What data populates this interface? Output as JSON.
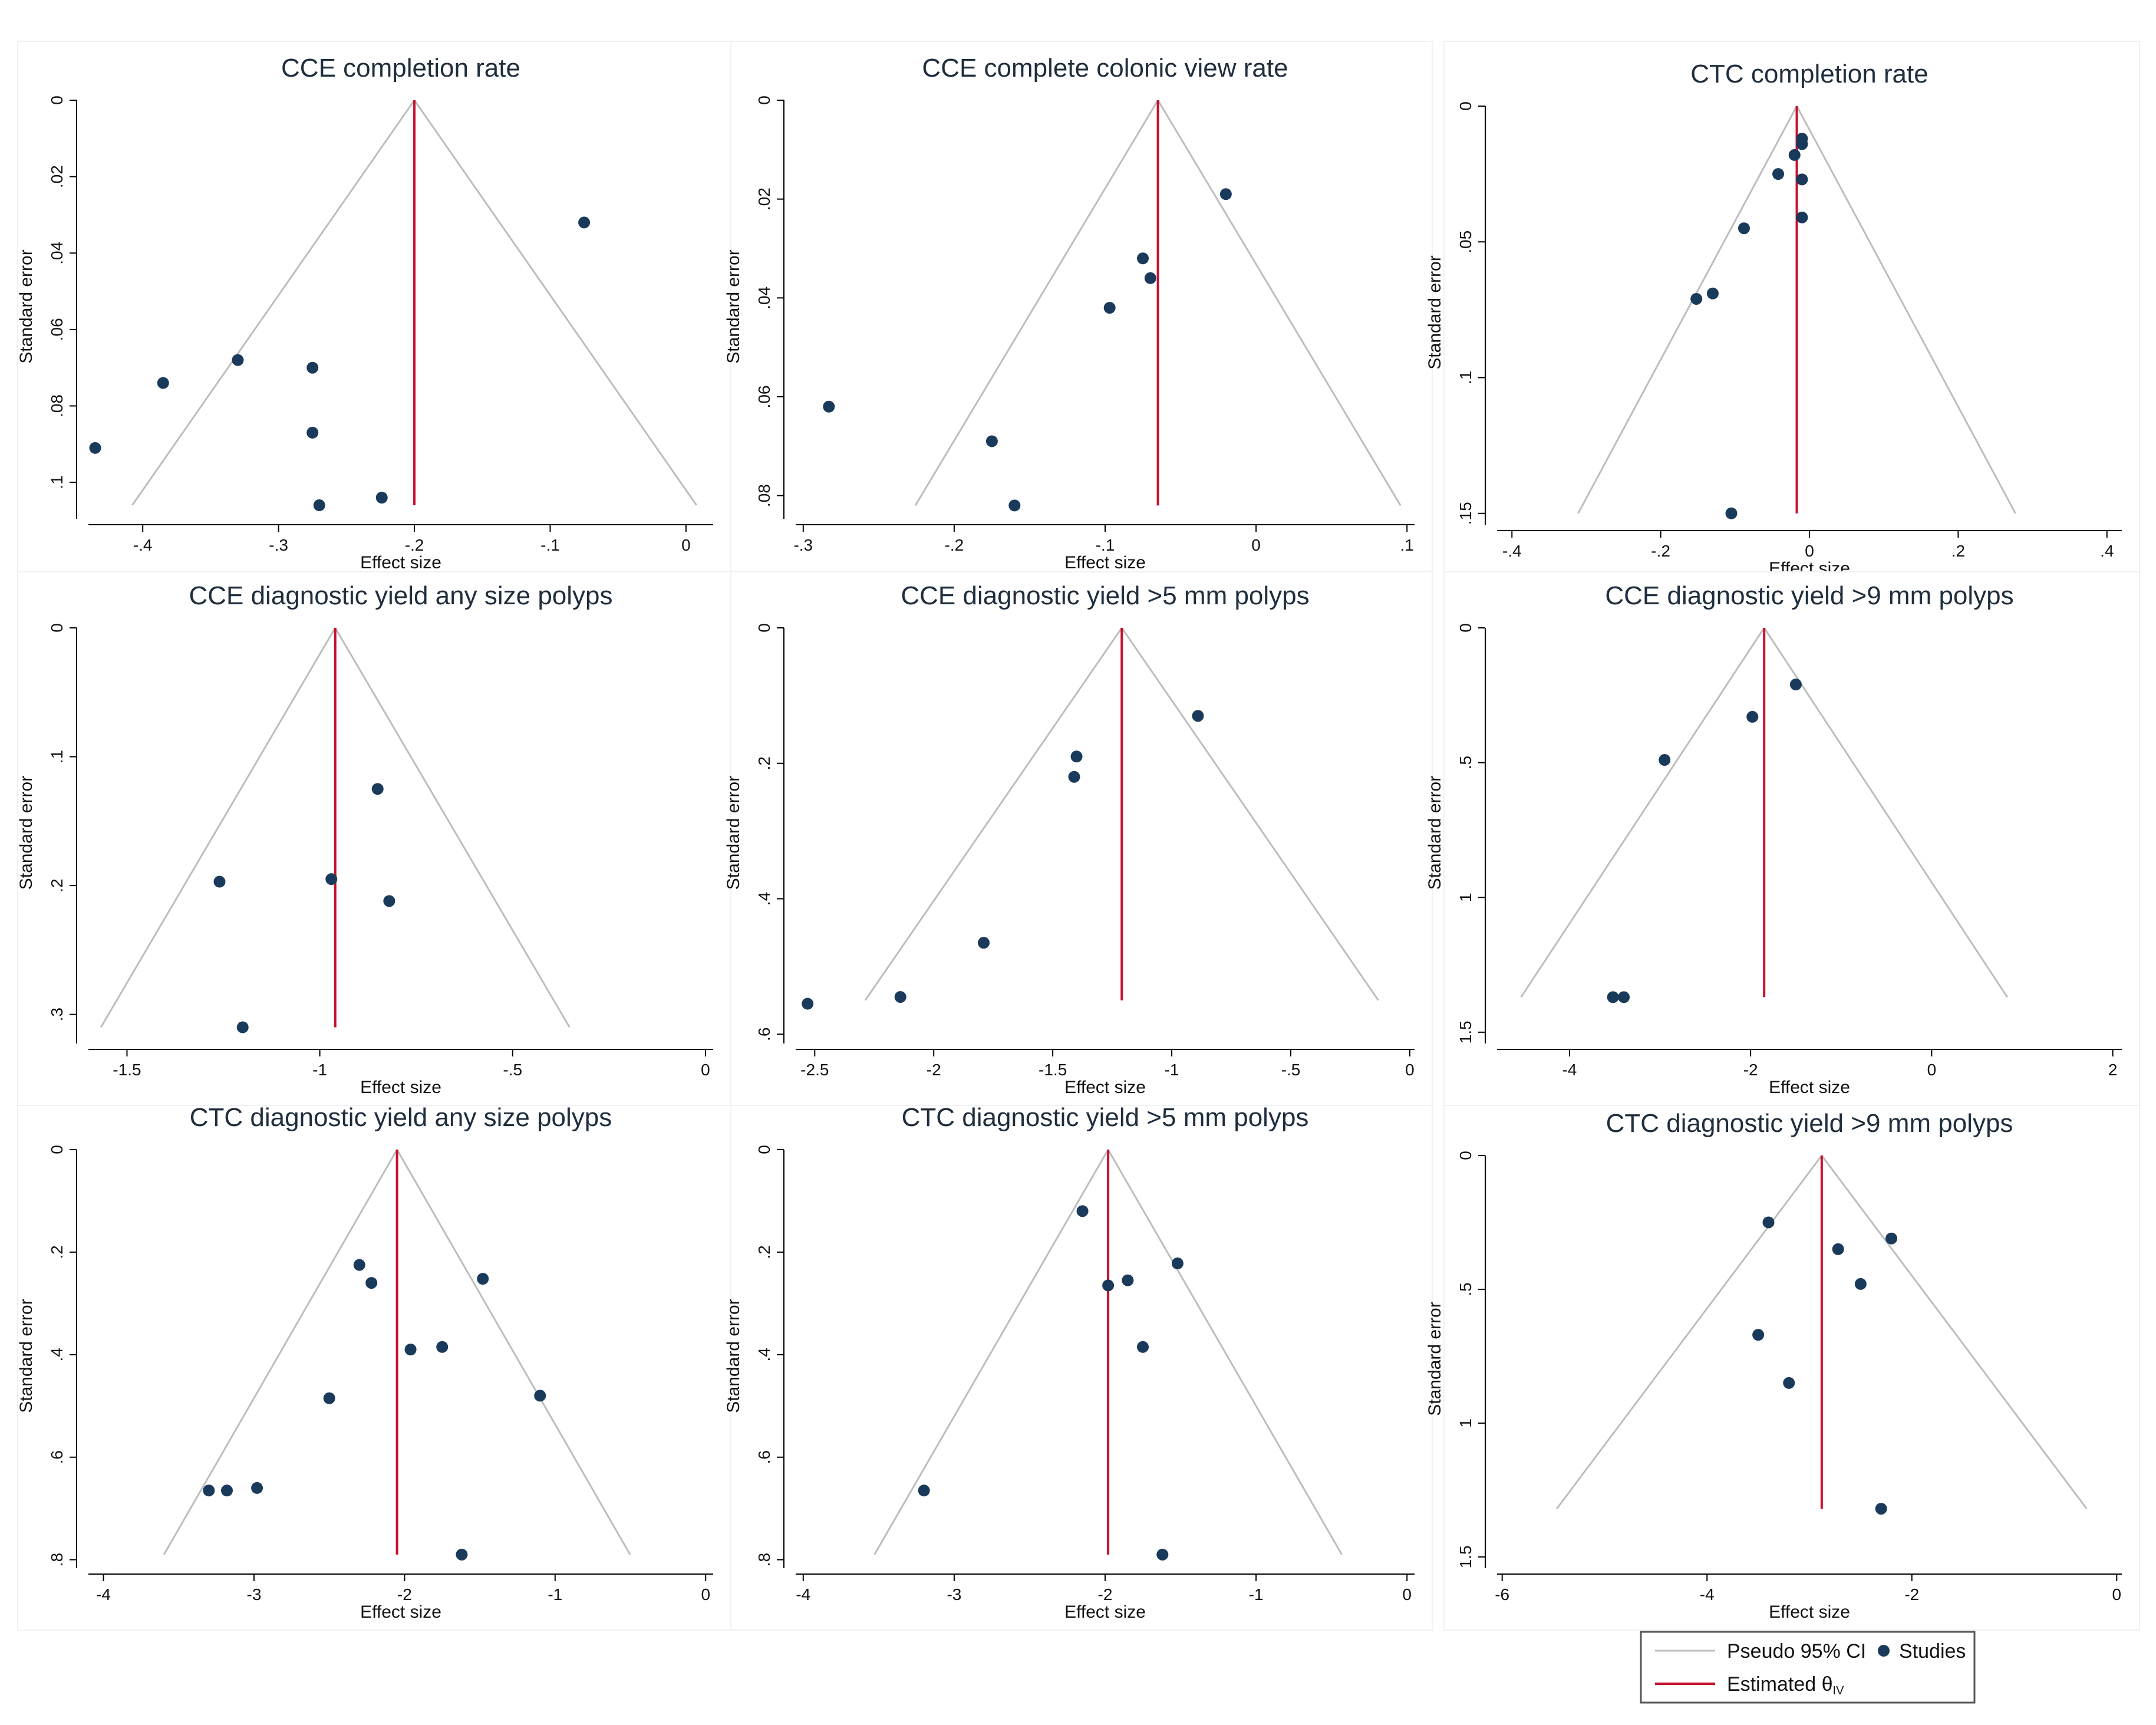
{
  "legend": {
    "ci_label": "Pseudo 95% CI",
    "studies_label": "Studies",
    "estimate_label": "Estimated θ",
    "estimate_sub": "IV",
    "ci_color": "#bdbdbd",
    "estimate_color": "#c8102e",
    "point_color": "#1a3a5c"
  },
  "chart_data": [
    {
      "type": "scatter",
      "title": "CCE completion rate",
      "xlabel": "Effect size",
      "ylabel": "Standard error",
      "xlim": [
        -0.44,
        0.02
      ],
      "ylim": [
        0,
        0.108
      ],
      "xticks": [
        -0.4,
        -0.3,
        -0.2,
        -0.1,
        0
      ],
      "xtick_labels": [
        "-.4",
        "-.3",
        "-.2",
        "-.1",
        "0"
      ],
      "yticks": [
        0,
        0.02,
        0.04,
        0.06,
        0.08,
        0.1
      ],
      "ytick_labels": [
        "0",
        ".02",
        ".04",
        ".06",
        ".08",
        ".1"
      ],
      "estimate": -0.2,
      "ci_se_max": 0.106,
      "points": [
        {
          "x": -0.075,
          "y": 0.032
        },
        {
          "x": -0.385,
          "y": 0.074
        },
        {
          "x": -0.33,
          "y": 0.068
        },
        {
          "x": -0.275,
          "y": 0.07
        },
        {
          "x": -0.275,
          "y": 0.087
        },
        {
          "x": -0.435,
          "y": 0.091
        },
        {
          "x": -0.27,
          "y": 0.106
        },
        {
          "x": -0.224,
          "y": 0.104
        }
      ]
    },
    {
      "type": "scatter",
      "title": "CCE complete colonic view rate",
      "xlabel": "Effect size",
      "ylabel": "Standard error",
      "xlim": [
        -0.305,
        0.105
      ],
      "ylim": [
        0,
        0.0835
      ],
      "xticks": [
        -0.3,
        -0.2,
        -0.1,
        0,
        0.1
      ],
      "xtick_labels": [
        "-.3",
        "-.2",
        "-.1",
        "0",
        ".1"
      ],
      "yticks": [
        0,
        0.02,
        0.04,
        0.06,
        0.08
      ],
      "ytick_labels": [
        "0",
        ".02",
        ".04",
        ".06",
        ".08"
      ],
      "estimate": -0.065,
      "ci_se_max": 0.082,
      "points": [
        {
          "x": -0.02,
          "y": 0.019
        },
        {
          "x": -0.075,
          "y": 0.032
        },
        {
          "x": -0.07,
          "y": 0.036
        },
        {
          "x": -0.097,
          "y": 0.042
        },
        {
          "x": -0.283,
          "y": 0.062
        },
        {
          "x": -0.175,
          "y": 0.069
        },
        {
          "x": -0.16,
          "y": 0.082
        }
      ]
    },
    {
      "type": "scatter",
      "title": "CTC completion rate",
      "xlabel": "Effect size",
      "ylabel": "Standard error",
      "xlim": [
        -0.42,
        0.42
      ],
      "ylim": [
        0,
        0.152
      ],
      "xticks": [
        -0.4,
        -0.2,
        0,
        0.2,
        0.4
      ],
      "xtick_labels": [
        "-.4",
        "-.2",
        "0",
        ".2",
        ".4"
      ],
      "yticks": [
        0,
        0.05,
        0.1,
        0.15
      ],
      "ytick_labels": [
        "0",
        ".05",
        ".1",
        ".15"
      ],
      "estimate": -0.017,
      "ci_se_max": 0.15,
      "points": [
        {
          "x": -0.01,
          "y": 0.012
        },
        {
          "x": -0.01,
          "y": 0.014
        },
        {
          "x": -0.02,
          "y": 0.018
        },
        {
          "x": -0.042,
          "y": 0.025
        },
        {
          "x": -0.01,
          "y": 0.027
        },
        {
          "x": -0.01,
          "y": 0.041
        },
        {
          "x": -0.088,
          "y": 0.045
        },
        {
          "x": -0.13,
          "y": 0.069
        },
        {
          "x": -0.152,
          "y": 0.071
        },
        {
          "x": -0.105,
          "y": 0.15
        }
      ]
    },
    {
      "type": "scatter",
      "title": "CCE diagnostic yield any size polyps",
      "xlabel": "Effect size",
      "ylabel": "Standard error",
      "xlim": [
        -1.6,
        0.02
      ],
      "ylim": [
        0,
        0.318
      ],
      "xticks": [
        -1.5,
        -1,
        -0.5,
        0
      ],
      "xtick_labels": [
        "-1.5",
        "-1",
        "-.5",
        "0"
      ],
      "yticks": [
        0,
        0.1,
        0.2,
        0.3
      ],
      "ytick_labels": [
        "0",
        ".1",
        ".2",
        ".3"
      ],
      "estimate": -0.96,
      "ci_se_max": 0.31,
      "points": [
        {
          "x": -0.85,
          "y": 0.125
        },
        {
          "x": -0.97,
          "y": 0.195
        },
        {
          "x": -1.26,
          "y": 0.197
        },
        {
          "x": -0.82,
          "y": 0.212
        },
        {
          "x": -1.2,
          "y": 0.31
        }
      ]
    },
    {
      "type": "scatter",
      "title": "CCE diagnostic yield >5 mm polyps",
      "xlabel": "Effect size",
      "ylabel": "Standard error",
      "xlim": [
        -2.58,
        0.02
      ],
      "ylim": [
        0,
        0.605
      ],
      "xticks": [
        -2.5,
        -2,
        -1.5,
        -1,
        -0.5,
        0
      ],
      "xtick_labels": [
        "-2.5",
        "-2",
        "-1.5",
        "-1",
        "-.5",
        "0"
      ],
      "yticks": [
        0,
        0.2,
        0.4,
        0.6
      ],
      "ytick_labels": [
        "0",
        ".2",
        ".4",
        ".6"
      ],
      "estimate": -1.21,
      "ci_se_max": 0.55,
      "points": [
        {
          "x": -0.89,
          "y": 0.13
        },
        {
          "x": -1.4,
          "y": 0.19
        },
        {
          "x": -1.41,
          "y": 0.22
        },
        {
          "x": -1.79,
          "y": 0.465
        },
        {
          "x": -2.14,
          "y": 0.545
        },
        {
          "x": -2.53,
          "y": 0.555
        }
      ]
    },
    {
      "type": "scatter",
      "title": "CCE diagnostic yield >9 mm polyps",
      "xlabel": "Effect size",
      "ylabel": "Standard error",
      "xlim": [
        -4.8,
        2.1
      ],
      "ylim": [
        0,
        1.52
      ],
      "xticks": [
        -4,
        -2,
        0,
        2
      ],
      "xtick_labels": [
        "-4",
        "-2",
        "0",
        "2"
      ],
      "yticks": [
        0,
        0.5,
        1,
        1.5
      ],
      "ytick_labels": [
        "0",
        ".5",
        "1",
        "1.5"
      ],
      "estimate": -1.85,
      "ci_se_max": 1.37,
      "points": [
        {
          "x": -1.5,
          "y": 0.21
        },
        {
          "x": -1.98,
          "y": 0.33
        },
        {
          "x": -2.95,
          "y": 0.49
        },
        {
          "x": -3.52,
          "y": 1.37
        },
        {
          "x": -3.4,
          "y": 1.37
        }
      ]
    },
    {
      "type": "scatter",
      "title": "CTC diagnostic yield any size polyps",
      "xlabel": "Effect size",
      "ylabel": "Standard error",
      "xlim": [
        -4.1,
        0.05
      ],
      "ylim": [
        0,
        0.805
      ],
      "xticks": [
        -4,
        -3,
        -2,
        -1,
        0
      ],
      "xtick_labels": [
        "-4",
        "-3",
        "-2",
        "-1",
        "0"
      ],
      "yticks": [
        0,
        0.2,
        0.4,
        0.6,
        0.8
      ],
      "ytick_labels": [
        "0",
        ".2",
        ".4",
        ".6",
        ".8"
      ],
      "estimate": -2.05,
      "ci_se_max": 0.79,
      "points": [
        {
          "x": -2.3,
          "y": 0.225
        },
        {
          "x": -1.48,
          "y": 0.252
        },
        {
          "x": -2.22,
          "y": 0.26
        },
        {
          "x": -1.96,
          "y": 0.39
        },
        {
          "x": -1.75,
          "y": 0.385
        },
        {
          "x": -2.5,
          "y": 0.485
        },
        {
          "x": -1.1,
          "y": 0.48
        },
        {
          "x": -3.3,
          "y": 0.665
        },
        {
          "x": -3.18,
          "y": 0.665
        },
        {
          "x": -2.98,
          "y": 0.66
        },
        {
          "x": -1.62,
          "y": 0.79
        }
      ]
    },
    {
      "type": "scatter",
      "title": "CTC diagnostic yield >5 mm polyps",
      "xlabel": "Effect size",
      "ylabel": "Standard error",
      "xlim": [
        -4.05,
        0.05
      ],
      "ylim": [
        0,
        0.805
      ],
      "xticks": [
        -4,
        -3,
        -2,
        -1,
        0
      ],
      "xtick_labels": [
        "-4",
        "-3",
        "-2",
        "-1",
        "0"
      ],
      "yticks": [
        0,
        0.2,
        0.4,
        0.6,
        0.8
      ],
      "ytick_labels": [
        "0",
        ".2",
        ".4",
        ".6",
        ".8"
      ],
      "estimate": -1.98,
      "ci_se_max": 0.79,
      "points": [
        {
          "x": -2.15,
          "y": 0.12
        },
        {
          "x": -1.52,
          "y": 0.222
        },
        {
          "x": -1.85,
          "y": 0.255
        },
        {
          "x": -1.98,
          "y": 0.265
        },
        {
          "x": -1.75,
          "y": 0.385
        },
        {
          "x": -3.2,
          "y": 0.665
        },
        {
          "x": -1.62,
          "y": 0.79
        }
      ]
    },
    {
      "type": "scatter",
      "title": "CTC diagnostic yield >9 mm polyps",
      "xlabel": "Effect size",
      "ylabel": "Standard error",
      "xlim": [
        -6.05,
        0.05
      ],
      "ylim": [
        0,
        1.52
      ],
      "xticks": [
        -6,
        -4,
        -2,
        0
      ],
      "xtick_labels": [
        "-6",
        "-4",
        "-2",
        "0"
      ],
      "yticks": [
        0,
        0.5,
        1,
        1.5
      ],
      "ytick_labels": [
        "0",
        ".5",
        "1",
        "1.5"
      ],
      "estimate": -2.88,
      "ci_se_max": 1.32,
      "points": [
        {
          "x": -3.4,
          "y": 0.25
        },
        {
          "x": -2.2,
          "y": 0.31
        },
        {
          "x": -2.72,
          "y": 0.35
        },
        {
          "x": -2.5,
          "y": 0.48
        },
        {
          "x": -3.5,
          "y": 0.67
        },
        {
          "x": -3.2,
          "y": 0.85
        },
        {
          "x": -2.3,
          "y": 1.32
        }
      ]
    }
  ]
}
